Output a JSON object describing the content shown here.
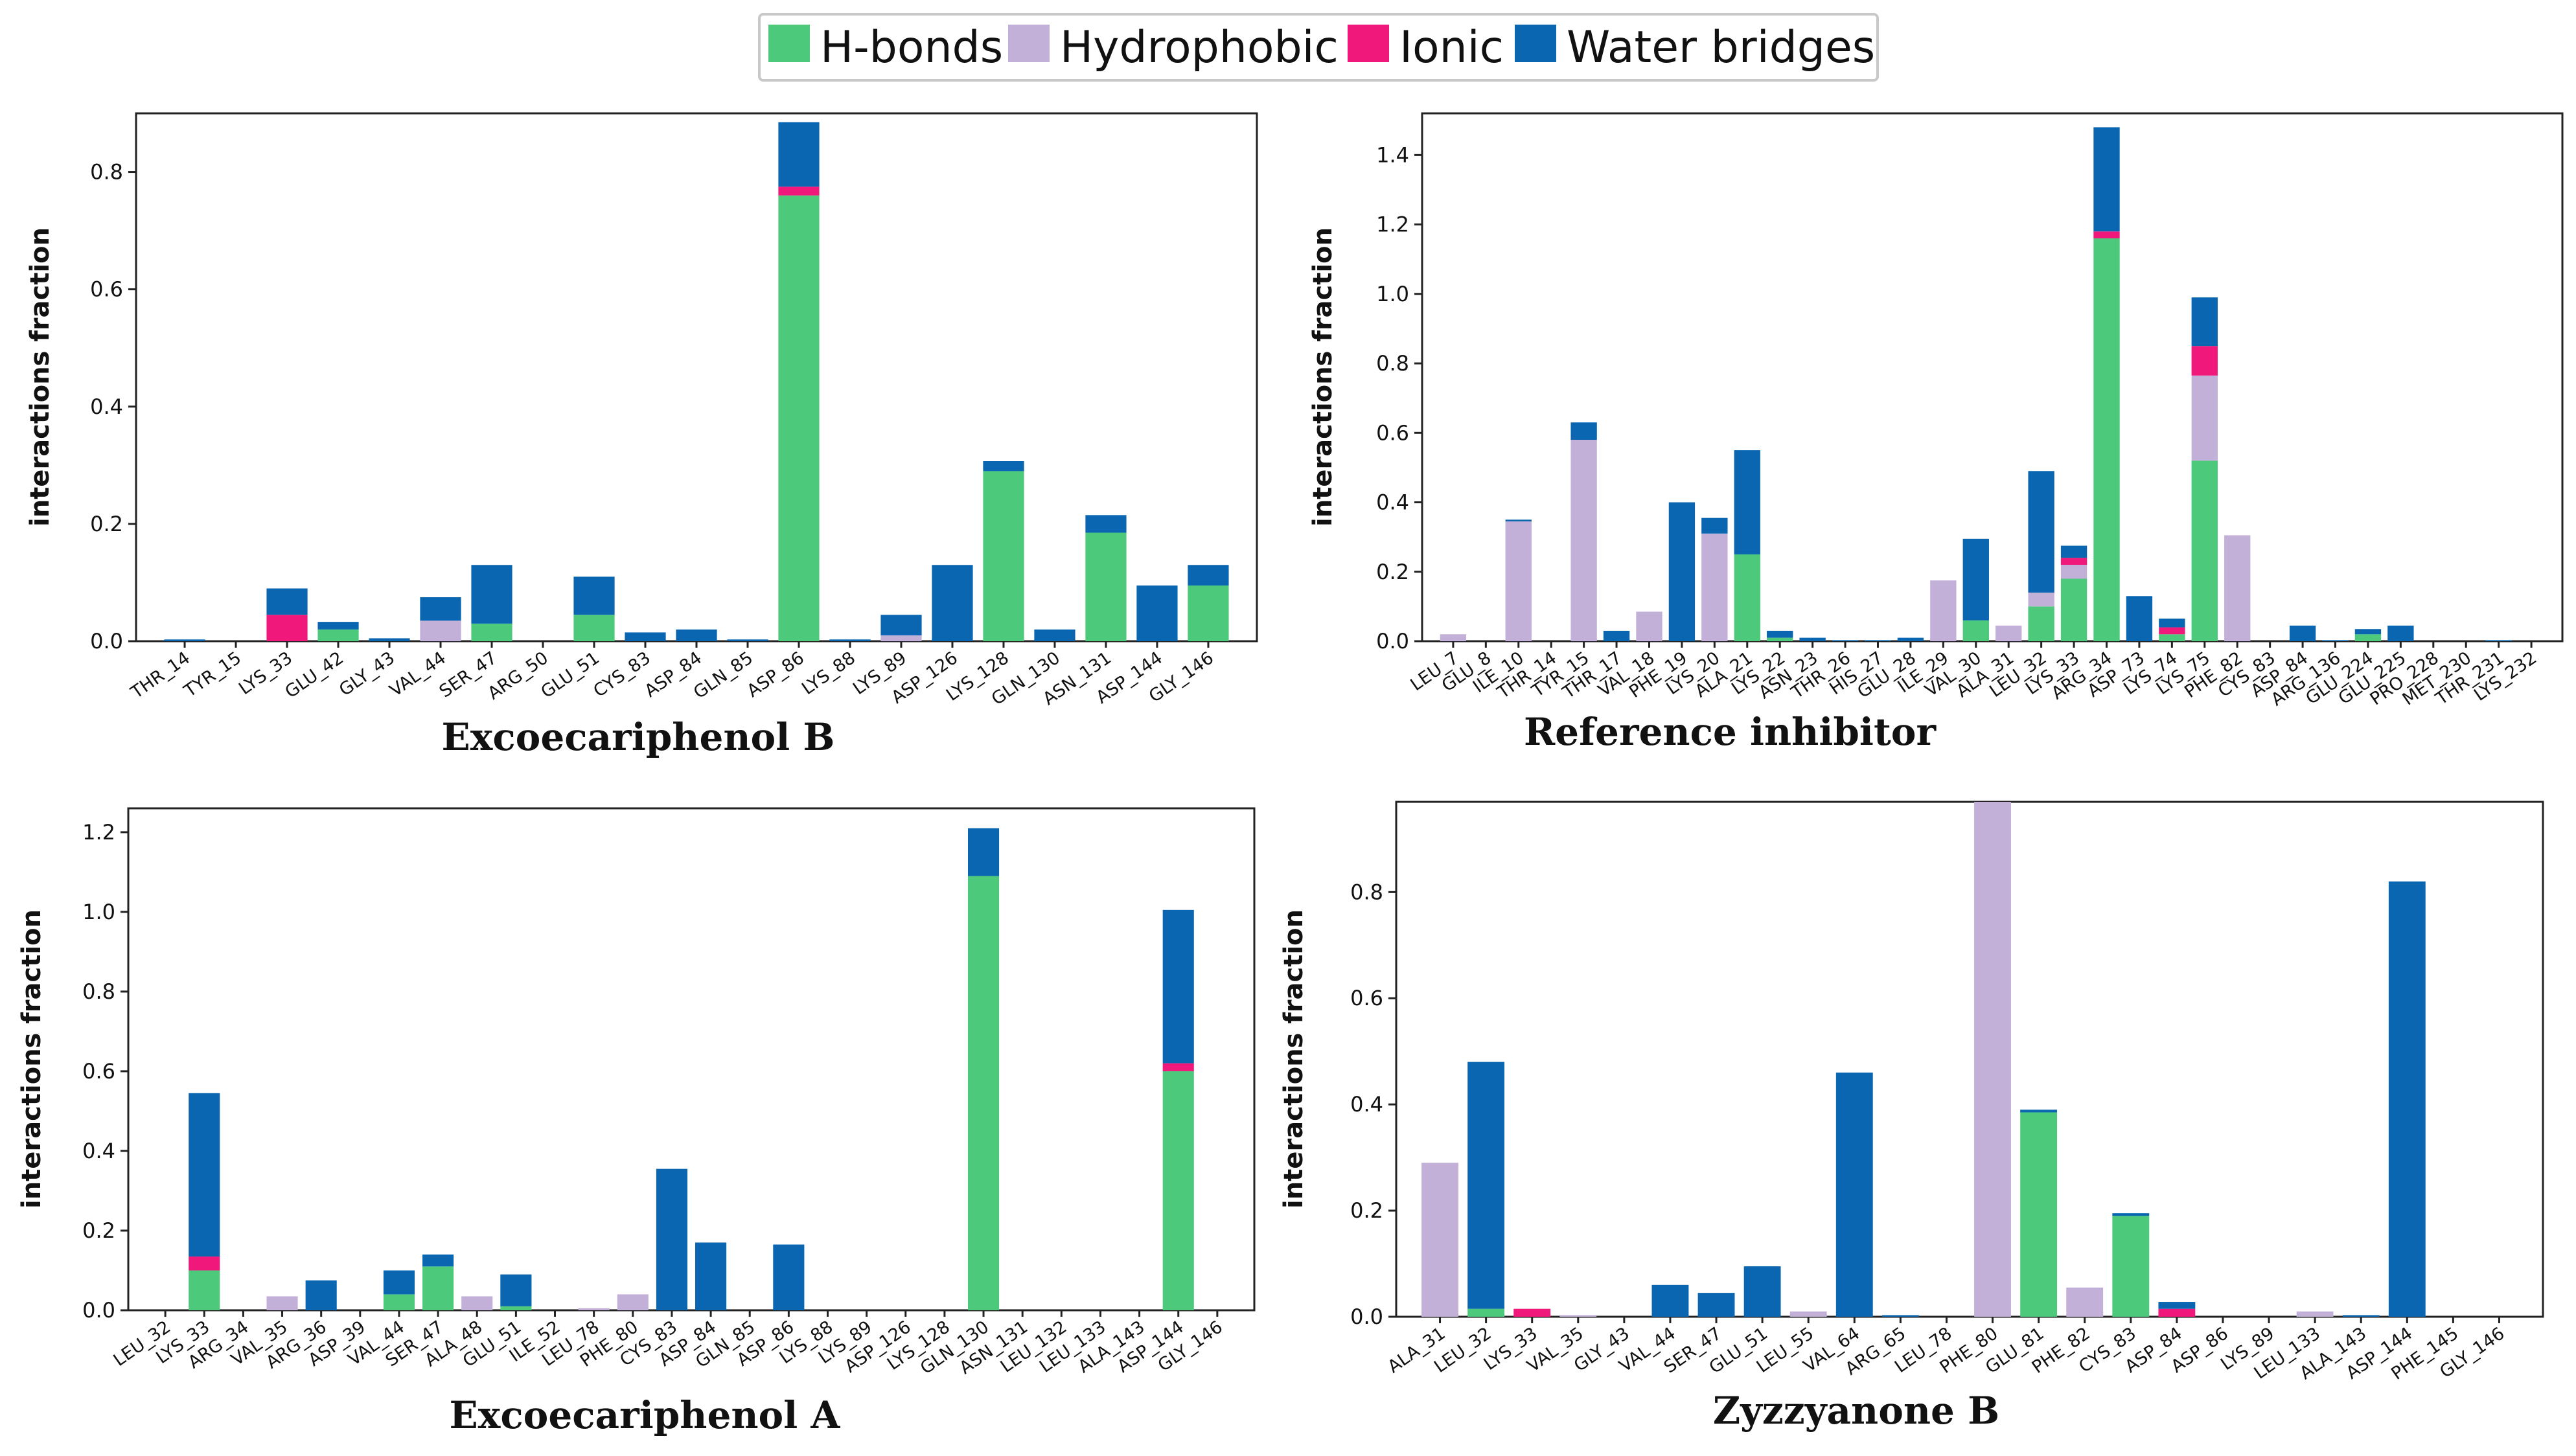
{
  "colors": {
    "hbonds": "#4cc97a",
    "hydrophobic": "#c3b0d8",
    "ionic": "#f0187a",
    "water": "#0a66b0"
  },
  "legend": [
    "H-bonds",
    "Hydrophobic",
    "Ionic",
    "Water bridges"
  ],
  "chart_data": [
    {
      "type": "bar",
      "stacked": true,
      "title": "Excoecariphenol B",
      "ylabel": "interactions fraction",
      "ylim": [
        0,
        0.9
      ],
      "yticks": [
        0.0,
        0.2,
        0.4,
        0.6,
        0.8
      ],
      "categories": [
        "THR_14",
        "TYR_15",
        "LYS_33",
        "GLU_42",
        "GLY_43",
        "VAL_44",
        "SER_47",
        "ARG_50",
        "GLU_51",
        "CYS_83",
        "ASP_84",
        "GLN_85",
        "ASP_86",
        "LYS_88",
        "LYS_89",
        "ASP_126",
        "LYS_128",
        "GLN_130",
        "ASN_131",
        "ASP_144",
        "GLY_146"
      ],
      "series": [
        {
          "name": "H-bonds",
          "values": [
            0,
            0,
            0,
            0.02,
            0,
            0,
            0.03,
            0,
            0.045,
            0,
            0,
            0,
            0.76,
            0,
            0,
            0,
            0.29,
            0,
            0.185,
            0,
            0.095
          ]
        },
        {
          "name": "Hydrophobic",
          "values": [
            0,
            0,
            0,
            0,
            0,
            0.035,
            0,
            0,
            0,
            0,
            0,
            0,
            0,
            0,
            0.01,
            0,
            0,
            0,
            0,
            0,
            0
          ]
        },
        {
          "name": "Ionic",
          "values": [
            0,
            0,
            0.045,
            0,
            0,
            0,
            0,
            0,
            0,
            0,
            0,
            0,
            0.015,
            0,
            0,
            0,
            0,
            0,
            0,
            0,
            0
          ]
        },
        {
          "name": "Water bridges",
          "values": [
            0.003,
            0,
            0.045,
            0.013,
            0.005,
            0.04,
            0.1,
            0,
            0.065,
            0.015,
            0.02,
            0.003,
            0.11,
            0.003,
            0.035,
            0.13,
            0.017,
            0.02,
            0.03,
            0.095,
            0.035
          ]
        }
      ]
    },
    {
      "type": "bar",
      "stacked": true,
      "title": "Reference inhibitor",
      "ylabel": "interactions fraction",
      "ylim": [
        0,
        1.52
      ],
      "yticks": [
        0.0,
        0.2,
        0.4,
        0.6,
        0.8,
        1.0,
        1.2,
        1.4
      ],
      "categories": [
        "LEU_7",
        "GLU_8",
        "ILE_10",
        "THR_14",
        "TYR_15",
        "THR_17",
        "VAL_18",
        "PHE_19",
        "LYS_20",
        "ALA_21",
        "LYS_22",
        "ASN_23",
        "THR_26",
        "HIS_27",
        "GLU_28",
        "ILE_29",
        "VAL_30",
        "ALA_31",
        "LEU_32",
        "LYS_33",
        "ARG_34",
        "ASP_73",
        "LYS_74",
        "LYS_75",
        "PHE_82",
        "CYS_83",
        "ASP_84",
        "ARG_136",
        "GLU_224",
        "GLU_225",
        "PRO_228",
        "MET_230",
        "THR_231",
        "LYS_232"
      ],
      "series": [
        {
          "name": "H-bonds",
          "values": [
            0,
            0,
            0,
            0,
            0,
            0,
            0,
            0,
            0,
            0.25,
            0.01,
            0,
            0,
            0,
            0,
            0,
            0.06,
            0,
            0.1,
            0.18,
            1.16,
            0,
            0.02,
            0.52,
            0,
            0,
            0,
            0,
            0.02,
            0,
            0,
            0,
            0,
            0
          ]
        },
        {
          "name": "Hydrophobic",
          "values": [
            0.02,
            0,
            0.345,
            0,
            0.58,
            0,
            0.085,
            0,
            0.31,
            0,
            0,
            0,
            0,
            0,
            0,
            0.175,
            0,
            0.045,
            0.04,
            0.04,
            0,
            0,
            0,
            0.245,
            0.305,
            0,
            0,
            0,
            0,
            0,
            0,
            0,
            0,
            0
          ]
        },
        {
          "name": "Ionic",
          "values": [
            0,
            0,
            0,
            0,
            0,
            0,
            0,
            0,
            0,
            0,
            0,
            0,
            0,
            0,
            0,
            0,
            0,
            0,
            0,
            0.02,
            0.02,
            0,
            0.02,
            0.085,
            0,
            0,
            0,
            0,
            0,
            0,
            0,
            0,
            0,
            0
          ]
        },
        {
          "name": "Water bridges",
          "values": [
            0,
            0,
            0.005,
            0,
            0.05,
            0.03,
            0,
            0.4,
            0.045,
            0.3,
            0.02,
            0.01,
            0.003,
            0.003,
            0.01,
            0,
            0.235,
            0,
            0.35,
            0.035,
            0.3,
            0.13,
            0.025,
            0.14,
            0,
            0,
            0.045,
            0.003,
            0.015,
            0.045,
            0,
            0,
            0.003,
            0
          ]
        }
      ]
    },
    {
      "type": "bar",
      "stacked": true,
      "title": "Excoecariphenol A",
      "ylabel": "interactions fraction",
      "ylim": [
        0,
        1.26
      ],
      "yticks": [
        0.0,
        0.2,
        0.4,
        0.6,
        0.8,
        1.0,
        1.2
      ],
      "categories": [
        "LEU_32",
        "LYS_33",
        "ARG_34",
        "VAL_35",
        "ARG_36",
        "ASP_39",
        "VAL_44",
        "SER_47",
        "ALA_48",
        "GLU_51",
        "ILE_52",
        "LEU_78",
        "PHE_80",
        "CYS_83",
        "ASP_84",
        "GLN_85",
        "ASP_86",
        "LYS_88",
        "LYS_89",
        "ASP_126",
        "LYS_128",
        "GLN_130",
        "ASN_131",
        "LEU_132",
        "LEU_133",
        "ALA_143",
        "ASP_144",
        "GLY_146"
      ],
      "series": [
        {
          "name": "H-bonds",
          "values": [
            0,
            0.1,
            0,
            0,
            0,
            0,
            0.04,
            0.11,
            0,
            0.01,
            0,
            0,
            0,
            0,
            0,
            0,
            0,
            0,
            0,
            0,
            0,
            1.09,
            0,
            0,
            0,
            0,
            0.6,
            0
          ]
        },
        {
          "name": "Hydrophobic",
          "values": [
            0,
            0,
            0,
            0.035,
            0,
            0,
            0,
            0,
            0.035,
            0,
            0,
            0.005,
            0.04,
            0,
            0,
            0,
            0,
            0,
            0,
            0,
            0,
            0,
            0,
            0,
            0,
            0,
            0,
            0
          ]
        },
        {
          "name": "Ionic",
          "values": [
            0,
            0.035,
            0,
            0,
            0,
            0,
            0,
            0,
            0,
            0,
            0,
            0,
            0,
            0,
            0,
            0,
            0,
            0,
            0,
            0,
            0,
            0,
            0,
            0,
            0,
            0,
            0.02,
            0
          ]
        },
        {
          "name": "Water bridges",
          "values": [
            0,
            0.41,
            0,
            0,
            0.075,
            0,
            0.06,
            0.03,
            0,
            0.08,
            0,
            0,
            0,
            0.355,
            0.17,
            0,
            0.165,
            0,
            0,
            0,
            0,
            0.12,
            0,
            0,
            0,
            0,
            0.385,
            0
          ]
        }
      ]
    },
    {
      "type": "bar",
      "stacked": true,
      "title": "Zyzzyanone B",
      "ylabel": "interactions fraction",
      "ylim": [
        0,
        0.97
      ],
      "yticks": [
        0.0,
        0.2,
        0.4,
        0.6,
        0.8
      ],
      "categories": [
        "ALA_31",
        "LEU_32",
        "LYS_33",
        "VAL_35",
        "GLY_43",
        "VAL_44",
        "SER_47",
        "GLU_51",
        "LEU_55",
        "VAL_64",
        "ARG_65",
        "LEU_78",
        "PHE_80",
        "GLU_81",
        "PHE_82",
        "CYS_83",
        "ASP_84",
        "ASP_86",
        "LYS_89",
        "LEU_133",
        "ALA_143",
        "ASP_144",
        "PHE_145",
        "GLY_146"
      ],
      "series": [
        {
          "name": "H-bonds",
          "values": [
            0,
            0.015,
            0,
            0,
            0,
            0,
            0,
            0,
            0,
            0,
            0,
            0,
            0,
            0.385,
            0,
            0.19,
            0,
            0,
            0,
            0,
            0,
            0,
            0,
            0
          ]
        },
        {
          "name": "Hydrophobic",
          "values": [
            0.29,
            0,
            0,
            0.003,
            0,
            0,
            0,
            0,
            0.01,
            0,
            0,
            0,
            0.97,
            0,
            0.055,
            0,
            0,
            0,
            0,
            0.01,
            0,
            0,
            0,
            0
          ]
        },
        {
          "name": "Ionic",
          "values": [
            0,
            0,
            0.015,
            0,
            0,
            0,
            0,
            0,
            0,
            0,
            0,
            0,
            0,
            0,
            0,
            0,
            0.015,
            0,
            0,
            0,
            0,
            0,
            0,
            0
          ]
        },
        {
          "name": "Water bridges",
          "values": [
            0,
            0.465,
            0,
            0,
            0,
            0.06,
            0.045,
            0.095,
            0,
            0.46,
            0.003,
            0,
            0,
            0.005,
            0,
            0.005,
            0.013,
            0,
            0,
            0,
            0.003,
            0.82,
            0,
            0
          ]
        }
      ]
    }
  ]
}
